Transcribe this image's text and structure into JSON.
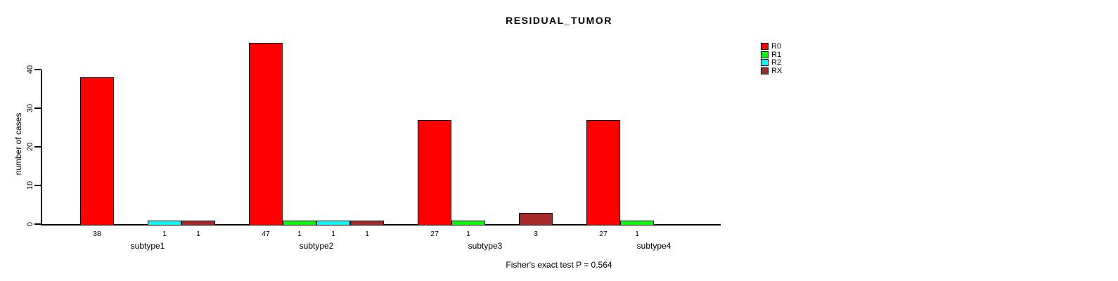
{
  "chart_data": {
    "type": "bar",
    "grouped": true,
    "title": "RESIDUAL_TUMOR",
    "xlabel": "",
    "ylabel": "number of cases",
    "footer": "Fisher's exact test P = 0.564",
    "categories": [
      "subtype1",
      "subtype2",
      "subtype3",
      "subtype4"
    ],
    "series": [
      {
        "name": "R0",
        "color": "#FF0000",
        "values": [
          38,
          47,
          27,
          27
        ]
      },
      {
        "name": "R1",
        "color": "#00FF00",
        "values": [
          0,
          1,
          1,
          1
        ]
      },
      {
        "name": "R2",
        "color": "#00FFFF",
        "values": [
          1,
          1,
          0,
          0
        ]
      },
      {
        "name": "RX",
        "color": "#A52A2A",
        "values": [
          1,
          1,
          3,
          0
        ]
      }
    ],
    "yticks": [
      0,
      10,
      20,
      30,
      40
    ],
    "ylim": [
      0,
      47
    ],
    "bar_value_labels": true,
    "grid": false,
    "legend_position": "right"
  }
}
